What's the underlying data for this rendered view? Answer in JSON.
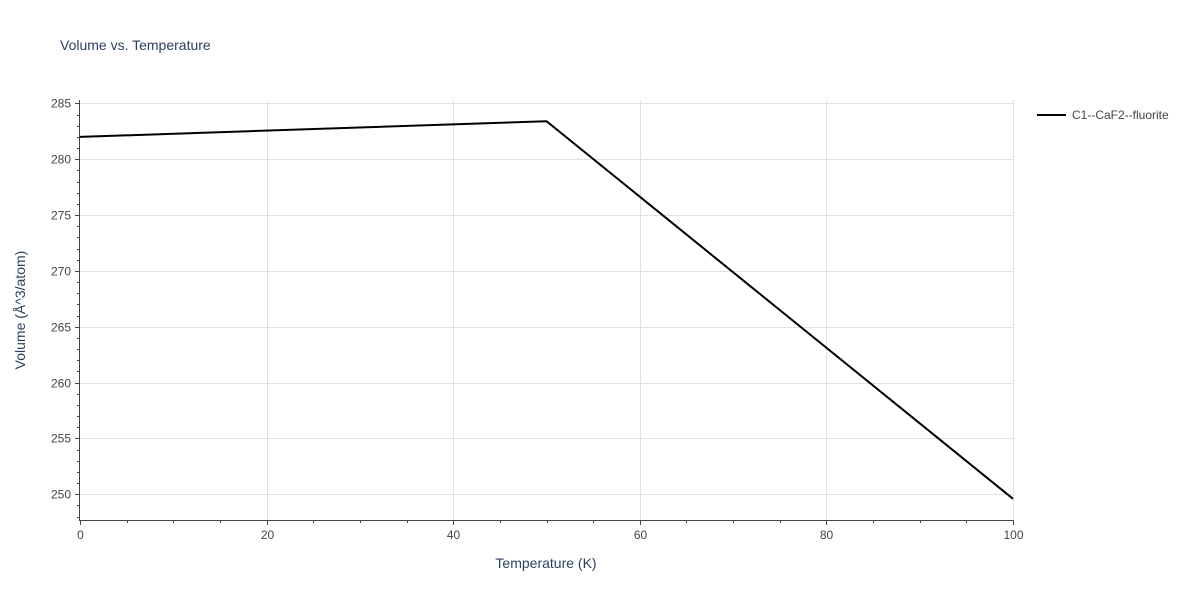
{
  "chart_data": {
    "type": "line",
    "title": "Volume vs. Temperature",
    "xlabel": "Temperature (K)",
    "ylabel": "Volume (Å^3/atom)",
    "xlim": [
      0,
      100
    ],
    "ylim": [
      247.7,
      285.3
    ],
    "xticks": [
      0,
      20,
      40,
      60,
      80,
      100
    ],
    "yticks": [
      250,
      255,
      260,
      265,
      270,
      275,
      280,
      285
    ],
    "grid": true,
    "legend_position": "top-right",
    "series": [
      {
        "name": "C1--CaF2--fluorite",
        "color": "#000000",
        "x": [
          0,
          50,
          100
        ],
        "y": [
          282.0,
          283.4,
          249.6
        ]
      }
    ]
  }
}
